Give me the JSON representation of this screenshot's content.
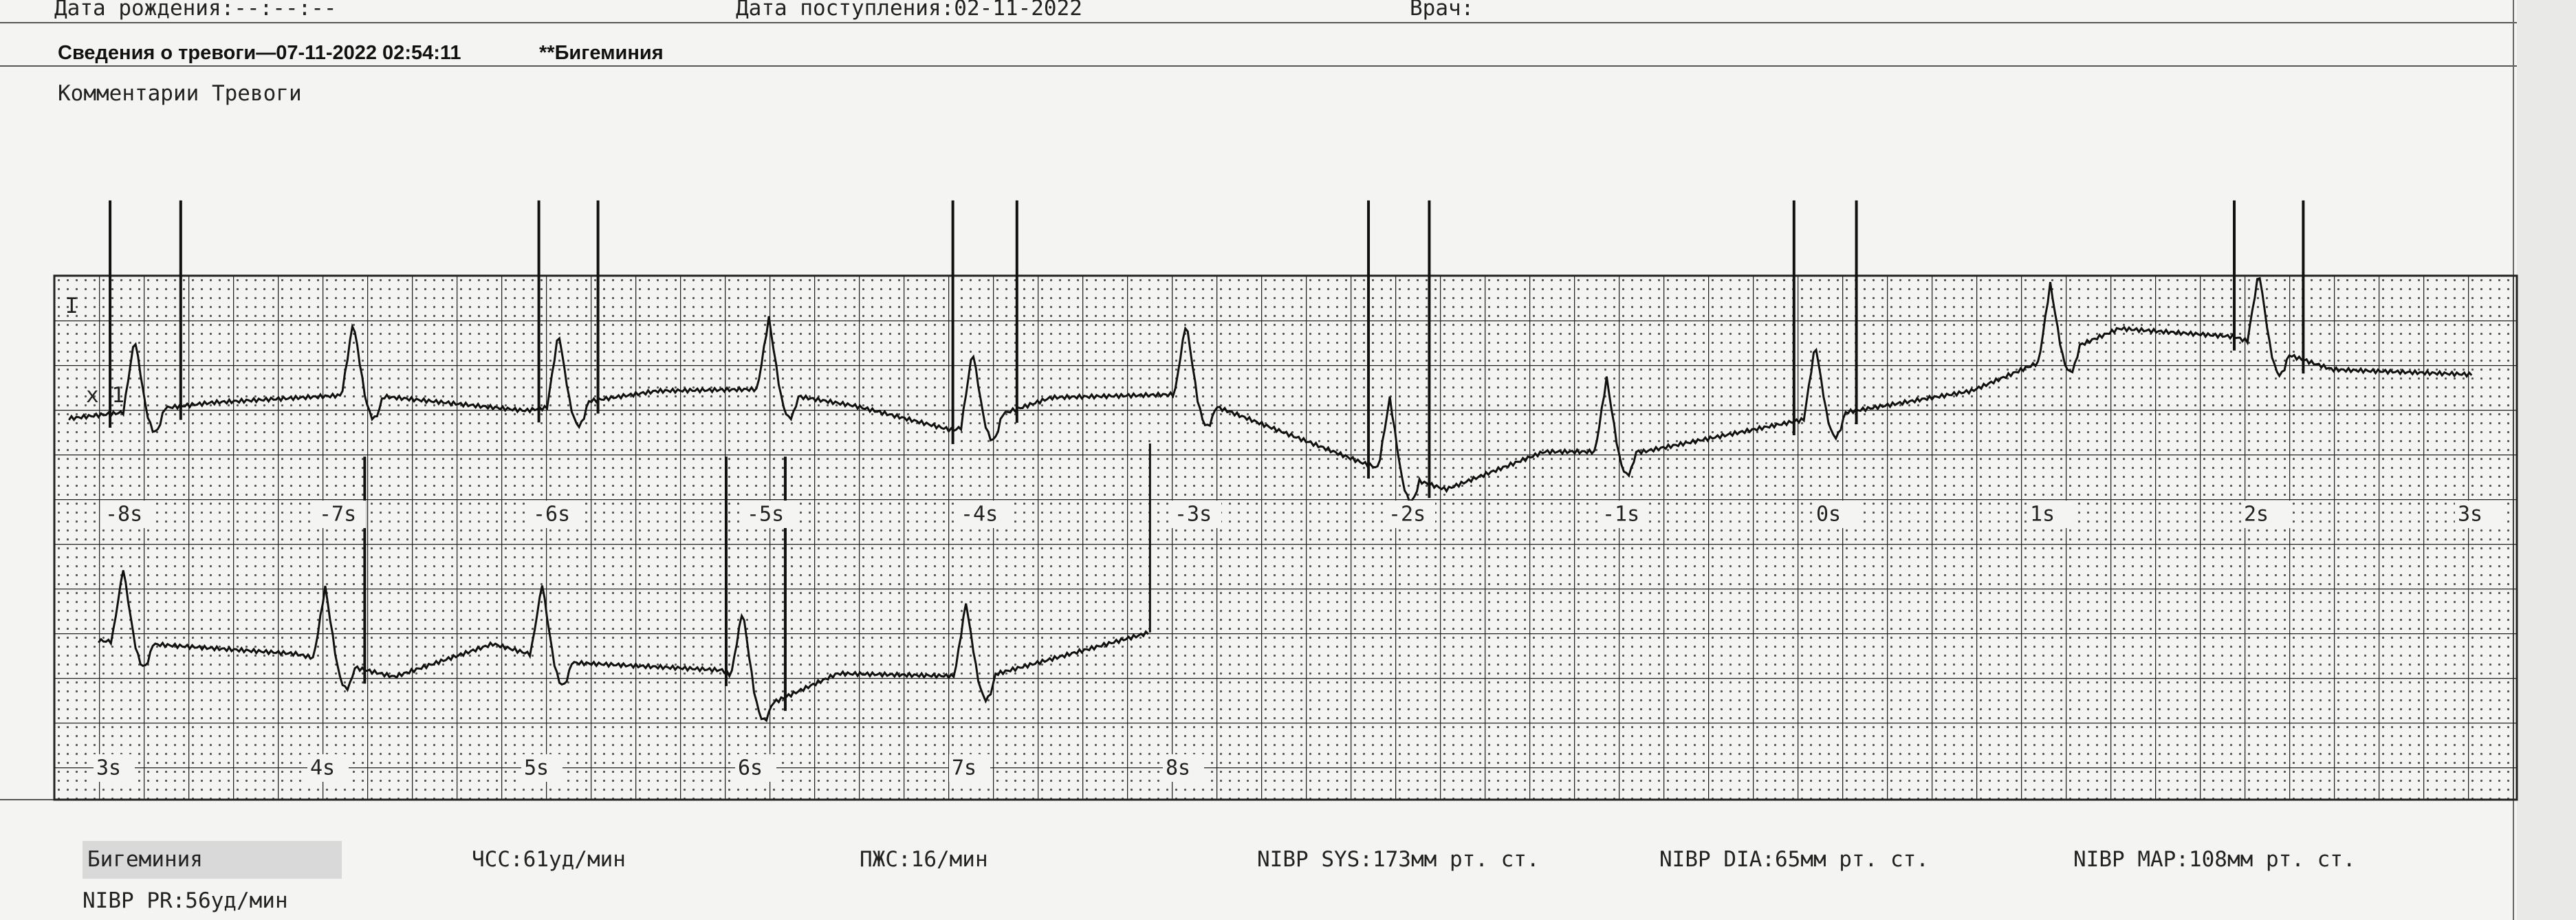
{
  "header": {
    "birth_date": "Дата рождения:--:--:--",
    "admission_date": "Дата поступления:02-11-2022",
    "doctor": "Врач:"
  },
  "alarm": {
    "info": "Сведения о тревоги—07-11-2022 02:54:11",
    "type": "**Бигеминия"
  },
  "comments_label": "Комментарии Тревоги",
  "ecg": {
    "lead": "I",
    "gain": "x 1",
    "strip1_labels": [
      "-8s",
      "-7s",
      "-6s",
      "-5s",
      "-4s",
      "-3s",
      "-2s",
      "-1s",
      "0s",
      "1s",
      "2s",
      "3s"
    ],
    "strip2_labels": [
      "3s",
      "4s",
      "5s",
      "6s",
      "7s",
      "8s"
    ]
  },
  "measurements": [
    "Бигеминия",
    "ЧСС:61уд/мин",
    "ПЖС:16/мин",
    "NIBP SYS:173мм рт. ст.",
    "NIBP DIA:65мм рт. ст.",
    "NIBP MAP:108мм рт. ст.",
    "NIBP PR:56уд/мин"
  ]
}
